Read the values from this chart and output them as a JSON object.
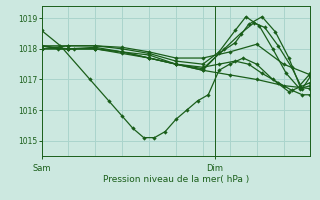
{
  "title": "Pression niveau de la mer( hPa )",
  "xlabel_sam": "Sam",
  "xlabel_dim": "Dim",
  "ylim": [
    1014.5,
    1019.4
  ],
  "yticks": [
    1015,
    1016,
    1017,
    1018,
    1019
  ],
  "bg_color": "#cce8e0",
  "line_color": "#1a5e1a",
  "grid_color": "#aad4cc",
  "vline_x": 0.645,
  "series": [
    [
      0.0,
      1018.6,
      0.07,
      1018.1,
      0.18,
      1017.0,
      0.25,
      1016.3,
      0.3,
      1015.8,
      0.34,
      1015.4,
      0.38,
      1015.1,
      0.42,
      1015.1,
      0.46,
      1015.3,
      0.5,
      1015.7,
      0.54,
      1016.0,
      0.58,
      1016.3,
      0.62,
      1016.5,
      0.66,
      1017.3,
      0.7,
      1017.5,
      0.75,
      1017.7,
      0.8,
      1017.5,
      0.86,
      1017.0,
      0.92,
      1016.6,
      1.0,
      1016.9
    ],
    [
      0.0,
      1018.1,
      0.06,
      1018.0,
      0.12,
      1018.0,
      0.2,
      1018.0,
      0.3,
      1017.9,
      0.4,
      1017.7,
      0.5,
      1017.5,
      0.6,
      1017.35,
      0.68,
      1018.0,
      0.74,
      1018.5,
      0.79,
      1018.85,
      0.83,
      1018.7,
      0.88,
      1018.1,
      0.93,
      1017.4,
      0.97,
      1016.7,
      1.0,
      1017.1
    ],
    [
      0.0,
      1018.0,
      0.1,
      1018.0,
      0.2,
      1018.0,
      0.3,
      1017.85,
      0.4,
      1017.7,
      0.5,
      1017.5,
      0.6,
      1017.4,
      0.66,
      1017.5,
      0.72,
      1017.6,
      0.77,
      1017.5,
      0.82,
      1017.2,
      0.88,
      1016.9,
      0.93,
      1016.65,
      0.97,
      1016.5,
      1.0,
      1016.5
    ],
    [
      0.0,
      1018.0,
      0.1,
      1018.0,
      0.2,
      1018.05,
      0.3,
      1017.9,
      0.4,
      1017.7,
      0.5,
      1017.5,
      0.6,
      1017.3,
      0.66,
      1017.85,
      0.72,
      1018.2,
      0.77,
      1018.8,
      0.82,
      1019.05,
      0.87,
      1018.55,
      0.92,
      1017.7,
      0.96,
      1016.8,
      1.0,
      1017.2
    ],
    [
      0.0,
      1018.0,
      0.1,
      1018.1,
      0.2,
      1018.1,
      0.3,
      1018.0,
      0.4,
      1017.85,
      0.5,
      1017.6,
      0.6,
      1017.5,
      0.66,
      1017.9,
      0.72,
      1018.6,
      0.76,
      1019.05,
      0.81,
      1018.75,
      0.86,
      1018.0,
      0.91,
      1017.2,
      0.96,
      1016.7,
      1.0,
      1016.8
    ],
    [
      0.0,
      1018.1,
      0.1,
      1018.0,
      0.2,
      1018.0,
      0.3,
      1017.9,
      0.4,
      1017.8,
      0.5,
      1017.5,
      0.6,
      1017.3,
      0.7,
      1017.15,
      0.8,
      1017.0,
      0.9,
      1016.8,
      1.0,
      1016.7
    ],
    [
      0.0,
      1018.1,
      0.1,
      1018.1,
      0.2,
      1018.1,
      0.3,
      1018.05,
      0.4,
      1017.9,
      0.5,
      1017.7,
      0.6,
      1017.7,
      0.7,
      1017.9,
      0.8,
      1018.15,
      0.9,
      1017.5,
      1.0,
      1017.15
    ]
  ]
}
